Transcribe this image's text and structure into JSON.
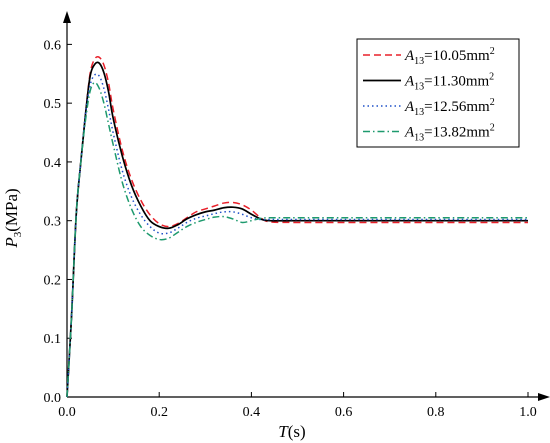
{
  "chart_data": {
    "type": "line",
    "title": "",
    "xlabel": "T(s)",
    "ylabel": "P3(MPa)",
    "xlabel_parts": {
      "var": "T",
      "rest": "(s)"
    },
    "ylabel_parts": {
      "var": "P",
      "sub": "3",
      "rest": "(MPa)"
    },
    "xlim": [
      0.0,
      1.0
    ],
    "ylim": [
      0.0,
      0.65
    ],
    "xticks": [
      0.0,
      0.2,
      0.4,
      0.6,
      0.8,
      1.0
    ],
    "yticks": [
      0.0,
      0.1,
      0.2,
      0.3,
      0.4,
      0.5,
      0.6
    ],
    "xtick_labels": [
      "0.0",
      "0.2",
      "0.4",
      "0.6",
      "0.8",
      "1.0"
    ],
    "ytick_labels": [
      "0.0",
      "0.1",
      "0.2",
      "0.3",
      "0.4",
      "0.5",
      "0.6"
    ],
    "grid": false,
    "legend_position": "top-right",
    "series": [
      {
        "name": "A13=10.05mm2",
        "label_parts": {
          "var": "A",
          "sub": "13",
          "value": "=10.05mm",
          "sup": "2"
        },
        "color": "#e8202a",
        "dash": "dashed",
        "x": [
          0.0,
          0.01,
          0.02,
          0.03,
          0.04,
          0.05,
          0.06,
          0.07,
          0.08,
          0.09,
          0.1,
          0.12,
          0.14,
          0.16,
          0.18,
          0.2,
          0.22,
          0.24,
          0.26,
          0.28,
          0.3,
          0.32,
          0.34,
          0.36,
          0.38,
          0.4,
          0.42,
          0.44,
          0.5,
          0.6,
          0.7,
          0.8,
          0.9,
          1.0
        ],
        "y": [
          0.0,
          0.14,
          0.31,
          0.4,
          0.48,
          0.55,
          0.575,
          0.578,
          0.565,
          0.535,
          0.49,
          0.42,
          0.37,
          0.335,
          0.31,
          0.295,
          0.29,
          0.295,
          0.305,
          0.315,
          0.32,
          0.325,
          0.33,
          0.331,
          0.327,
          0.318,
          0.305,
          0.298,
          0.297,
          0.297,
          0.297,
          0.297,
          0.297,
          0.297
        ]
      },
      {
        "name": "A13=11.30mm2",
        "label_parts": {
          "var": "A",
          "sub": "13",
          "value": "=11.30mm",
          "sup": "2"
        },
        "color": "#000000",
        "dash": "solid",
        "x": [
          0.0,
          0.01,
          0.02,
          0.03,
          0.04,
          0.05,
          0.06,
          0.07,
          0.08,
          0.09,
          0.1,
          0.12,
          0.14,
          0.16,
          0.18,
          0.2,
          0.22,
          0.24,
          0.26,
          0.28,
          0.3,
          0.32,
          0.34,
          0.36,
          0.38,
          0.4,
          0.42,
          0.44,
          0.5,
          0.6,
          0.7,
          0.8,
          0.9,
          1.0
        ],
        "y": [
          0.0,
          0.14,
          0.31,
          0.4,
          0.48,
          0.545,
          0.566,
          0.568,
          0.552,
          0.52,
          0.475,
          0.41,
          0.36,
          0.325,
          0.3,
          0.29,
          0.287,
          0.293,
          0.303,
          0.31,
          0.315,
          0.318,
          0.322,
          0.323,
          0.32,
          0.311,
          0.303,
          0.3,
          0.3,
          0.3,
          0.3,
          0.3,
          0.3,
          0.3
        ]
      },
      {
        "name": "A13=12.56mm2",
        "label_parts": {
          "var": "A",
          "sub": "13",
          "value": "=12.56mm",
          "sup": "2"
        },
        "color": "#1e50c8",
        "dash": "dotted",
        "x": [
          0.0,
          0.01,
          0.02,
          0.03,
          0.04,
          0.05,
          0.06,
          0.07,
          0.08,
          0.09,
          0.1,
          0.12,
          0.14,
          0.16,
          0.18,
          0.2,
          0.22,
          0.24,
          0.26,
          0.28,
          0.3,
          0.32,
          0.34,
          0.36,
          0.38,
          0.4,
          0.42,
          0.44,
          0.5,
          0.6,
          0.7,
          0.8,
          0.9,
          1.0
        ],
        "y": [
          0.0,
          0.14,
          0.31,
          0.4,
          0.48,
          0.53,
          0.548,
          0.546,
          0.525,
          0.49,
          0.45,
          0.385,
          0.34,
          0.31,
          0.29,
          0.279,
          0.279,
          0.287,
          0.297,
          0.304,
          0.308,
          0.312,
          0.315,
          0.315,
          0.311,
          0.305,
          0.302,
          0.302,
          0.302,
          0.302,
          0.302,
          0.302,
          0.302,
          0.302
        ]
      },
      {
        "name": "A13=13.82mm2",
        "label_parts": {
          "var": "A",
          "sub": "13",
          "value": "=13.82mm",
          "sup": "2"
        },
        "color": "#1e9a6e",
        "dash": "dashdot",
        "x": [
          0.0,
          0.01,
          0.02,
          0.03,
          0.04,
          0.05,
          0.06,
          0.07,
          0.08,
          0.09,
          0.1,
          0.12,
          0.14,
          0.16,
          0.18,
          0.2,
          0.22,
          0.24,
          0.26,
          0.28,
          0.3,
          0.32,
          0.34,
          0.36,
          0.38,
          0.4,
          0.42,
          0.44,
          0.5,
          0.6,
          0.7,
          0.8,
          0.9,
          1.0
        ],
        "y": [
          0.0,
          0.14,
          0.31,
          0.4,
          0.47,
          0.52,
          0.535,
          0.525,
          0.5,
          0.465,
          0.43,
          0.365,
          0.32,
          0.29,
          0.275,
          0.268,
          0.27,
          0.28,
          0.29,
          0.297,
          0.302,
          0.306,
          0.307,
          0.303,
          0.297,
          0.3,
          0.304,
          0.305,
          0.305,
          0.305,
          0.305,
          0.305,
          0.305,
          0.305
        ]
      }
    ]
  }
}
